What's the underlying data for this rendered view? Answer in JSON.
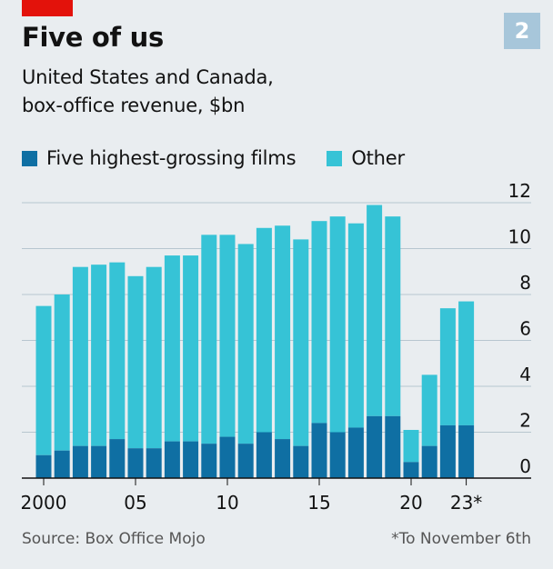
{
  "header": {
    "title": "Five of us",
    "badge": "2",
    "subtitle_line1": "United States and Canada,",
    "subtitle_line2": "box-office revenue, $bn"
  },
  "legend": {
    "top5_label": "Five highest-grossing films",
    "other_label": "Other"
  },
  "colors": {
    "top5": "#0F6FA3",
    "other": "#36C3D6",
    "accent": "#E3120B"
  },
  "footer": {
    "source": "Source: Box Office Mojo",
    "note": "*To November 6th"
  },
  "chart_data": {
    "type": "bar",
    "stacked": true,
    "categories": [
      "2000",
      "2001",
      "2002",
      "2003",
      "2004",
      "2005",
      "2006",
      "2007",
      "2008",
      "2009",
      "2010",
      "2011",
      "2012",
      "2013",
      "2014",
      "2015",
      "2016",
      "2017",
      "2018",
      "2019",
      "2020",
      "2021",
      "2022",
      "2023"
    ],
    "x_tick_labels": [
      {
        "index": 0,
        "label": "2000"
      },
      {
        "index": 5,
        "label": "05"
      },
      {
        "index": 10,
        "label": "10"
      },
      {
        "index": 15,
        "label": "15"
      },
      {
        "index": 20,
        "label": "20"
      },
      {
        "index": 23,
        "label": "23*"
      }
    ],
    "series": [
      {
        "name": "Five highest-grossing films",
        "values": [
          1.0,
          1.2,
          1.4,
          1.4,
          1.7,
          1.3,
          1.3,
          1.6,
          1.6,
          1.5,
          1.8,
          1.5,
          2.0,
          1.7,
          1.4,
          2.4,
          2.0,
          2.2,
          2.7,
          2.7,
          0.7,
          1.4,
          2.3,
          2.3
        ]
      },
      {
        "name": "Other",
        "values": [
          6.5,
          6.8,
          7.8,
          7.9,
          7.7,
          7.5,
          7.9,
          8.1,
          8.1,
          9.1,
          8.8,
          8.7,
          8.9,
          9.3,
          9.0,
          8.8,
          9.4,
          8.9,
          9.2,
          8.7,
          1.4,
          3.1,
          5.1,
          5.4
        ]
      }
    ],
    "y_ticks": [
      0,
      2,
      4,
      6,
      8,
      10,
      12
    ],
    "ylim": [
      0,
      12
    ],
    "yaxis_position": "right",
    "grid": true,
    "legend_position": "top-left"
  }
}
